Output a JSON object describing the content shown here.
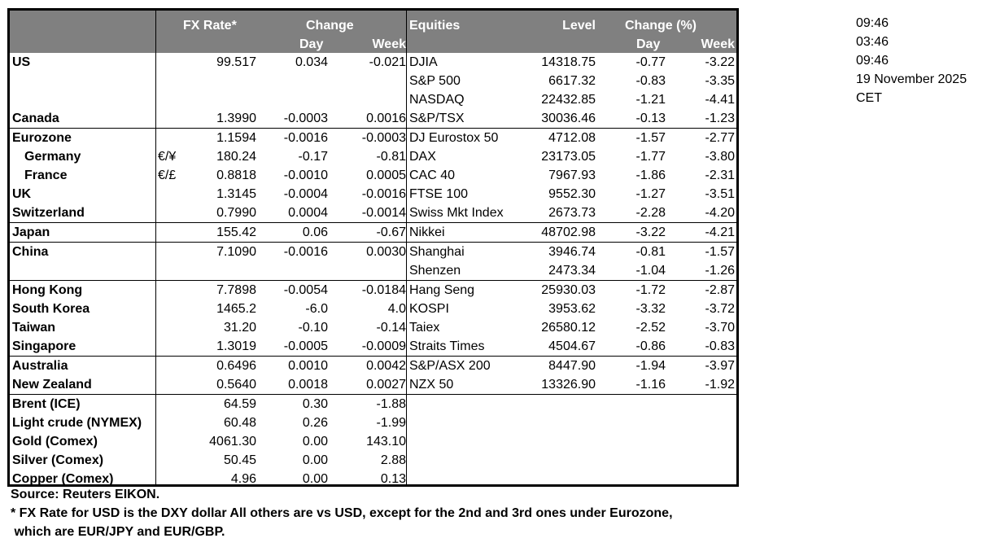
{
  "header": {
    "fx_rate": "FX Rate*",
    "change": "Change",
    "day": "Day",
    "week": "Week",
    "equities": "Equities",
    "level": "Level",
    "change_pct": "Change (%)",
    "eq_day": "Day",
    "eq_week": "Week"
  },
  "groups": [
    [
      {
        "country": "US",
        "code": "",
        "fx": "99.517",
        "day": "0.034",
        "week": "-0.021",
        "equity": "DJIA",
        "level": "14318.75",
        "eday": "-0.77",
        "eweek": "-3.22"
      },
      {
        "country": "",
        "code": "",
        "fx": "",
        "day": "",
        "week": "",
        "equity": "S&P 500",
        "level": "6617.32",
        "eday": "-0.83",
        "eweek": "-3.35"
      },
      {
        "country": "",
        "code": "",
        "fx": "",
        "day": "",
        "week": "",
        "equity": "NASDAQ",
        "level": "22432.85",
        "eday": "-1.21",
        "eweek": "-4.41"
      },
      {
        "country": "Canada",
        "code": "",
        "fx": "1.3990",
        "day": "-0.0003",
        "week": "0.0016",
        "equity": "S&P/TSX",
        "level": "30036.46",
        "eday": "-0.13",
        "eweek": "-1.23"
      }
    ],
    [
      {
        "country": "Eurozone",
        "code": "",
        "fx": "1.1594",
        "day": "-0.0016",
        "week": "-0.0003",
        "equity": "DJ Eurostox 50",
        "level": "4712.08",
        "eday": "-1.57",
        "eweek": "-2.77"
      },
      {
        "country": "Germany",
        "indent": true,
        "code": "€/¥",
        "fx": "180.24",
        "day": "-0.17",
        "week": "-0.81",
        "equity": "DAX",
        "level": "23173.05",
        "eday": "-1.77",
        "eweek": "-3.80"
      },
      {
        "country": "France",
        "indent": true,
        "code": "€/£",
        "fx": "0.8818",
        "day": "-0.0010",
        "week": "0.0005",
        "equity": "CAC 40",
        "level": "7967.93",
        "eday": "-1.86",
        "eweek": "-2.31"
      },
      {
        "country": "UK",
        "code": "",
        "fx": "1.3145",
        "day": "-0.0004",
        "week": "-0.0016",
        "equity": "FTSE 100",
        "level": "9552.30",
        "eday": "-1.27",
        "eweek": "-3.51"
      },
      {
        "country": "Switzerland",
        "code": "",
        "fx": "0.7990",
        "day": "0.0004",
        "week": "-0.0014",
        "equity": "Swiss Mkt Index",
        "level": "2673.73",
        "eday": "-2.28",
        "eweek": "-4.20"
      }
    ],
    [
      {
        "country": "Japan",
        "code": "",
        "fx": "155.42",
        "day": "0.06",
        "week": "-0.67",
        "equity": "Nikkei",
        "level": "48702.98",
        "eday": "-3.22",
        "eweek": "-4.21"
      }
    ],
    [
      {
        "country": "China",
        "code": "",
        "fx": "7.1090",
        "day": "-0.0016",
        "week": "0.0030",
        "equity": "Shanghai",
        "level": "3946.74",
        "eday": "-0.81",
        "eweek": "-1.57"
      },
      {
        "country": "",
        "code": "",
        "fx": "",
        "day": "",
        "week": "",
        "equity": "Shenzen",
        "level": "2473.34",
        "eday": "-1.04",
        "eweek": "-1.26"
      }
    ],
    [
      {
        "country": "Hong Kong",
        "code": "",
        "fx": "7.7898",
        "day": "-0.0054",
        "week": "-0.0184",
        "equity": "Hang Seng",
        "level": "25930.03",
        "eday": "-1.72",
        "eweek": "-2.87"
      },
      {
        "country": "South Korea",
        "code": "",
        "fx": "1465.2",
        "day": "-6.0",
        "week": "4.0",
        "equity": "KOSPI",
        "level": "3953.62",
        "eday": "-3.32",
        "eweek": "-3.72"
      },
      {
        "country": "Taiwan",
        "code": "",
        "fx": "31.20",
        "day": "-0.10",
        "week": "-0.14",
        "equity": "Taiex",
        "level": "26580.12",
        "eday": "-2.52",
        "eweek": "-3.70"
      },
      {
        "country": "Singapore",
        "code": "",
        "fx": "1.3019",
        "day": "-0.0005",
        "week": "-0.0009",
        "equity": "Straits Times",
        "level": "4504.67",
        "eday": "-0.86",
        "eweek": "-0.83"
      }
    ],
    [
      {
        "country": "Australia",
        "code": "",
        "fx": "0.6496",
        "day": "0.0010",
        "week": "0.0042",
        "equity": "S&P/ASX  200",
        "level": "8447.90",
        "eday": "-1.94",
        "eweek": "-3.97"
      },
      {
        "country": "New Zealand",
        "code": "",
        "fx": "0.5640",
        "day": "0.0018",
        "week": "0.0027",
        "equity": "NZX 50",
        "level": "13326.90",
        "eday": "-1.16",
        "eweek": "-1.92"
      }
    ],
    [
      {
        "country": "Brent (ICE)",
        "code": "",
        "fx": "64.59",
        "day": "0.30",
        "week": "-1.88",
        "equity": "",
        "level": "",
        "eday": "",
        "eweek": ""
      },
      {
        "country": "Light crude (NYMEX)",
        "code": "",
        "fx": "60.48",
        "day": "0.26",
        "week": "-1.99",
        "equity": "",
        "level": "",
        "eday": "",
        "eweek": ""
      },
      {
        "country": "Gold (Comex)",
        "code": "",
        "fx": "4061.30",
        "day": "0.00",
        "week": "143.10",
        "equity": "",
        "level": "",
        "eday": "",
        "eweek": ""
      },
      {
        "country": "Silver (Comex)",
        "code": "",
        "fx": "50.45",
        "day": "0.00",
        "week": "2.88",
        "equity": "",
        "level": "",
        "eday": "",
        "eweek": ""
      },
      {
        "country": "Copper (Comex)",
        "code": "",
        "fx": "4.96",
        "day": "0.00",
        "week": "0.13",
        "equity": "",
        "level": "",
        "eday": "",
        "eweek": ""
      }
    ]
  ],
  "notes": {
    "source": "Source:  Reuters EIKON.",
    "footnote_1": "* FX Rate for USD is the DXY dollar  All others are vs USD, except for the 2nd and 3rd ones under Eurozone,",
    "footnote_2": " which are EUR/JPY and EUR/GBP."
  },
  "side": [
    "09:46",
    "03:46",
    "09:46",
    "19 November 2025",
    "CET"
  ],
  "colors": {
    "header_bg": "#808080",
    "header_text": "#ffffff"
  }
}
